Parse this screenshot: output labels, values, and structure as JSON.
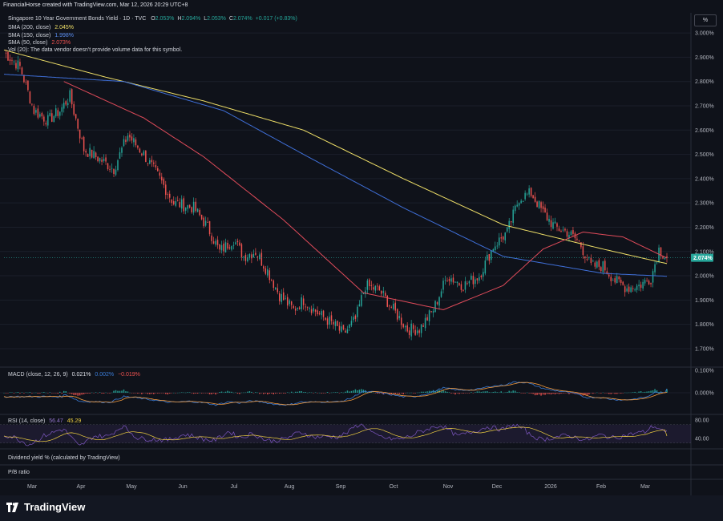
{
  "header": {
    "title": "FinancialHorse created with TradingView.com, Mar 12, 2026 20:29 UTC+8"
  },
  "toolbar": {
    "unit_label": "%"
  },
  "legend": {
    "symbol": "Singapore 10 Year Government Bonds Yield · 1D · TVC",
    "ohlc": [
      {
        "k": "O",
        "v": "2.053%"
      },
      {
        "k": "H",
        "v": "2.094%"
      },
      {
        "k": "L",
        "v": "2.053%"
      },
      {
        "k": "C",
        "v": "2.074%"
      },
      {
        "k": "chg",
        "v": "+0.017 (+0.83%)"
      }
    ],
    "sma200": {
      "label": "SMA (200, close)",
      "value": "2.045%"
    },
    "sma150": {
      "label": "SMA (150, close)",
      "value": "1.998%"
    },
    "sma50": {
      "label": "SMA (50, close)",
      "value": "2.073%"
    },
    "vol": "Vol (20): The data vendor doesn't provide volume data for this symbol.",
    "macd": {
      "label": "MACD (close, 12, 26, 9)",
      "v1": "0.021%",
      "v2": "0.002%",
      "v3": "−0.019%"
    },
    "rsi": {
      "label": "RSI (14, close)",
      "v1": "56.47",
      "v2": "45.29"
    },
    "div": "Dividend yield % (calculated by TradingView)",
    "pb": "P/B ratio"
  },
  "footer": {
    "brand": "TradingView"
  },
  "colors": {
    "bg": "#0f121a",
    "up": "#26a69a",
    "down": "#ef5350",
    "sma200": "#f0e068",
    "sma150": "#3f6fd8",
    "sma50": "#e04b5a",
    "macd": "#3a7bd5",
    "signal": "#f39a3c",
    "rsi": "#7e57c2",
    "rsi_ma": "#f0d040"
  },
  "chart_data": {
    "type": "line",
    "subtype": "candlestick",
    "price_axis": {
      "ticks": [
        "3.000%",
        "2.900%",
        "2.800%",
        "2.700%",
        "2.600%",
        "2.500%",
        "2.400%",
        "2.300%",
        "2.200%",
        "2.100%",
        "2.000%",
        "1.900%",
        "1.800%",
        "1.700%"
      ],
      "range": [
        1.68,
        3.04
      ],
      "last": "2.074%"
    },
    "time_axis": [
      "Mar",
      "Apr",
      "May",
      "Jun",
      "Jul",
      "Aug",
      "Sep",
      "Oct",
      "Nov",
      "Dec",
      "2026",
      "Feb",
      "Mar"
    ],
    "close_knots": [
      [
        0,
        2.92
      ],
      [
        8,
        2.86
      ],
      [
        15,
        2.68
      ],
      [
        22,
        2.64
      ],
      [
        28,
        2.68
      ],
      [
        33,
        2.74
      ],
      [
        40,
        2.52
      ],
      [
        48,
        2.48
      ],
      [
        55,
        2.44
      ],
      [
        62,
        2.58
      ],
      [
        70,
        2.5
      ],
      [
        78,
        2.4
      ],
      [
        85,
        2.3
      ],
      [
        95,
        2.28
      ],
      [
        102,
        2.2
      ],
      [
        108,
        2.1
      ],
      [
        115,
        2.15
      ],
      [
        120,
        2.08
      ],
      [
        126,
        2.1
      ],
      [
        132,
        2.02
      ],
      [
        138,
        1.92
      ],
      [
        145,
        1.86
      ],
      [
        150,
        1.9
      ],
      [
        158,
        1.84
      ],
      [
        165,
        1.8
      ],
      [
        170,
        1.76
      ],
      [
        176,
        1.82
      ],
      [
        181,
        1.96
      ],
      [
        188,
        1.94
      ],
      [
        195,
        1.86
      ],
      [
        202,
        1.78
      ],
      [
        208,
        1.78
      ],
      [
        215,
        1.86
      ],
      [
        222,
        2.0
      ],
      [
        230,
        1.96
      ],
      [
        238,
        2.0
      ],
      [
        245,
        2.12
      ],
      [
        252,
        2.18
      ],
      [
        258,
        2.32
      ],
      [
        264,
        2.34
      ],
      [
        270,
        2.26
      ],
      [
        276,
        2.2
      ],
      [
        282,
        2.18
      ],
      [
        288,
        2.14
      ],
      [
        294,
        2.04
      ],
      [
        300,
        2.04
      ],
      [
        306,
        1.98
      ],
      [
        312,
        1.95
      ],
      [
        318,
        1.96
      ],
      [
        324,
        1.99
      ],
      [
        328,
        2.11
      ],
      [
        332,
        2.074
      ]
    ],
    "sma200_knots": [
      [
        0,
        2.93
      ],
      [
        50,
        2.82
      ],
      [
        100,
        2.72
      ],
      [
        150,
        2.6
      ],
      [
        200,
        2.4
      ],
      [
        250,
        2.21
      ],
      [
        300,
        2.11
      ],
      [
        332,
        2.05
      ]
    ],
    "sma150_knots": [
      [
        0,
        2.83
      ],
      [
        60,
        2.8
      ],
      [
        110,
        2.68
      ],
      [
        150,
        2.5
      ],
      [
        200,
        2.28
      ],
      [
        250,
        2.08
      ],
      [
        300,
        2.01
      ],
      [
        332,
        1.998
      ]
    ],
    "sma50_knots": [
      [
        30,
        2.8
      ],
      [
        70,
        2.65
      ],
      [
        100,
        2.49
      ],
      [
        140,
        2.23
      ],
      [
        180,
        1.93
      ],
      [
        220,
        1.86
      ],
      [
        250,
        1.96
      ],
      [
        270,
        2.11
      ],
      [
        290,
        2.18
      ],
      [
        310,
        2.16
      ],
      [
        332,
        2.073
      ]
    ],
    "macd_axis": [
      "0.100%",
      "0.000%"
    ],
    "macd_last": {
      "macd": 0.021,
      "signal": 0.002,
      "hist": -0.019
    },
    "rsi_axis": [
      "80.00",
      "40.00"
    ],
    "rsi_last": {
      "rsi": 56.47,
      "ma": 45.29
    }
  }
}
